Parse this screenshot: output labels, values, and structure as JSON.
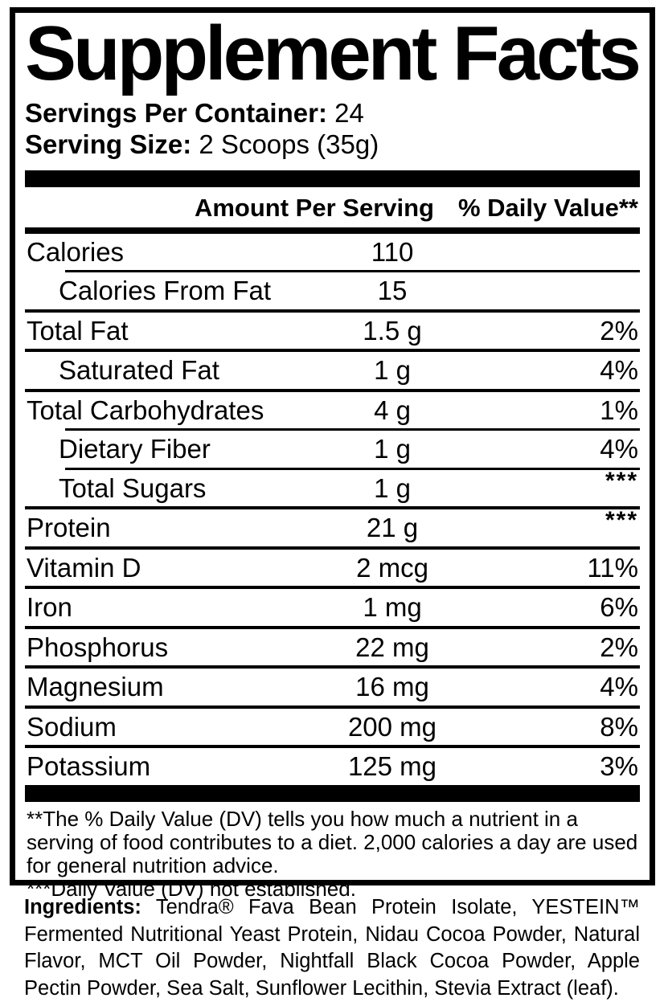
{
  "colors": {
    "foreground": "#000000",
    "background": "#ffffff"
  },
  "supplement_facts": {
    "title": "Supplement Facts",
    "servings_per_container": {
      "label": "Servings Per Container:",
      "value": "24"
    },
    "serving_size": {
      "label": "Serving Size:",
      "value": "2 Scoops (35g)"
    },
    "header": {
      "amount": "Amount Per Serving",
      "daily_value": "% Daily Value**"
    },
    "rows": [
      {
        "name": "Calories",
        "amount": "110",
        "dv": "",
        "indent": false,
        "sep": "none"
      },
      {
        "name": "Calories From Fat",
        "amount": "15",
        "dv": "",
        "indent": true,
        "sep": "indent"
      },
      {
        "name": "Total Fat",
        "amount": "1.5 g",
        "dv": "2%",
        "indent": false,
        "sep": "full"
      },
      {
        "name": "Saturated Fat",
        "amount": "1 g",
        "dv": "4%",
        "indent": true,
        "sep": "full"
      },
      {
        "name": "Total Carbohydrates",
        "amount": "4 g",
        "dv": "1%",
        "indent": false,
        "sep": "full"
      },
      {
        "name": "Dietary Fiber",
        "amount": "1 g",
        "dv": "4%",
        "indent": true,
        "sep": "indent"
      },
      {
        "name": "Total Sugars",
        "amount": "1 g",
        "dv": "***",
        "indent": true,
        "sep": "indent"
      },
      {
        "name": "Protein",
        "amount": "21 g",
        "dv": "***",
        "indent": false,
        "sep": "full"
      },
      {
        "name": "Vitamin D",
        "amount": "2 mcg",
        "dv": "11%",
        "indent": false,
        "sep": "full"
      },
      {
        "name": "Iron",
        "amount": "1 mg",
        "dv": "6%",
        "indent": false,
        "sep": "full"
      },
      {
        "name": "Phosphorus",
        "amount": "22 mg",
        "dv": "2%",
        "indent": false,
        "sep": "full"
      },
      {
        "name": "Magnesium",
        "amount": "16 mg",
        "dv": "4%",
        "indent": false,
        "sep": "full"
      },
      {
        "name": "Sodium",
        "amount": "200 mg",
        "dv": "8%",
        "indent": false,
        "sep": "full"
      },
      {
        "name": "Potassium",
        "amount": "125 mg",
        "dv": "3%",
        "indent": false,
        "sep": "full"
      }
    ],
    "footnotes": [
      "**The % Daily Value (DV) tells you how much a nutrient in a serving of food contributes to a diet. 2,000 calories a day are used for general nutrition advice.",
      "***Daily Value (DV) not established."
    ]
  },
  "ingredients": {
    "label": "Ingredients:",
    "text": "Tendra® Fava Bean Protein Isolate, YESTEIN™ Fermented Nutritional Yeast Protein, Nidau Cocoa Powder, Natural Flavor, MCT Oil Powder, Nightfall Black Cocoa Powder, Apple Pectin Powder, Sea Salt, Sunflower Lecithin, Stevia Extract (leaf)."
  }
}
